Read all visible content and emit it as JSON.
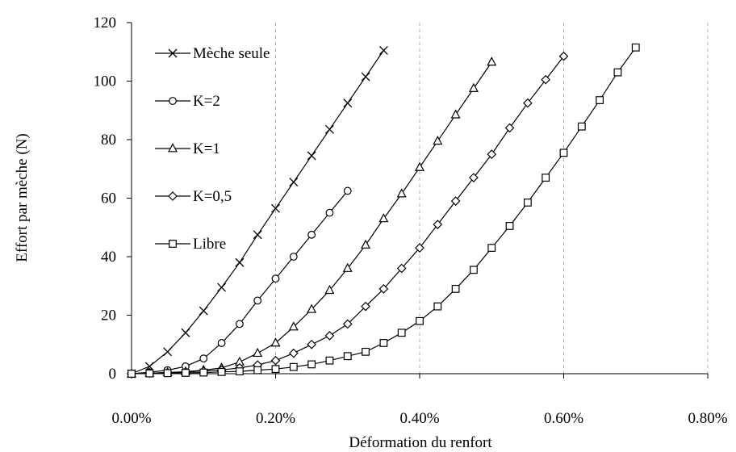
{
  "chart_data": {
    "type": "line",
    "title": "",
    "xlabel": "Déformation du renfort",
    "ylabel": "Effort par mèche (N)",
    "xlim": [
      0,
      0.008
    ],
    "ylim": [
      0,
      120
    ],
    "xticks": [
      0,
      0.002,
      0.004,
      0.006,
      0.008
    ],
    "xtick_labels": [
      "0.00%",
      "0.20%",
      "0.40%",
      "0.60%",
      "0.80%"
    ],
    "yticks": [
      0,
      20,
      40,
      60,
      80,
      100,
      120
    ],
    "ytick_labels": [
      "0",
      "20",
      "40",
      "60",
      "80",
      "100",
      "120"
    ],
    "grid": "vertical dashed",
    "legend_position": "top-left inside",
    "line_color": "#000000",
    "series": [
      {
        "name": "Mèche seule",
        "marker": "x",
        "x": [
          0,
          0.00025,
          0.0005,
          0.00075,
          0.001,
          0.00125,
          0.0015,
          0.00175,
          0.002,
          0.00225,
          0.0025,
          0.00275,
          0.003,
          0.00325,
          0.0035
        ],
        "y": [
          0,
          2.5,
          7.5,
          14,
          21.5,
          29.5,
          38,
          47.5,
          56.5,
          65.5,
          74.5,
          83.5,
          92.5,
          101.5,
          110.5
        ]
      },
      {
        "name": "K=2",
        "marker": "circle",
        "x": [
          0,
          0.00025,
          0.0005,
          0.00075,
          0.001,
          0.00125,
          0.0015,
          0.00175,
          0.002,
          0.00225,
          0.0025,
          0.00275,
          0.003
        ],
        "y": [
          0,
          0.5,
          1.2,
          2.5,
          5.2,
          10.5,
          17,
          25,
          32.5,
          40,
          47.5,
          55,
          62.5
        ]
      },
      {
        "name": "K=1",
        "marker": "triangle",
        "x": [
          0,
          0.00025,
          0.0005,
          0.00075,
          0.001,
          0.00125,
          0.0015,
          0.00175,
          0.002,
          0.00225,
          0.0025,
          0.00275,
          0.003,
          0.00325,
          0.0035,
          0.00375,
          0.004,
          0.00425,
          0.0045,
          0.00475,
          0.005
        ],
        "y": [
          0,
          0.2,
          0.4,
          0.7,
          1.2,
          2,
          4,
          7,
          10.5,
          16,
          22,
          28.5,
          36,
          44,
          53,
          61.5,
          70.5,
          79.5,
          88.5,
          97.5,
          106.5
        ]
      },
      {
        "name": "K=0,5",
        "marker": "diamond",
        "x": [
          0,
          0.00025,
          0.0005,
          0.00075,
          0.001,
          0.00125,
          0.0015,
          0.00175,
          0.002,
          0.00225,
          0.0025,
          0.00275,
          0.003,
          0.00325,
          0.0035,
          0.00375,
          0.004,
          0.00425,
          0.0045,
          0.00475,
          0.005,
          0.00525,
          0.0055,
          0.00575,
          0.006
        ],
        "y": [
          0,
          0.2,
          0.4,
          0.6,
          0.9,
          1.3,
          2,
          3,
          4.5,
          7,
          10,
          13,
          17,
          23,
          29,
          36,
          43,
          51,
          59,
          67,
          75,
          84,
          92.5,
          100.5,
          108.5
        ]
      },
      {
        "name": "Libre",
        "marker": "square",
        "x": [
          0,
          0.00025,
          0.0005,
          0.00075,
          0.001,
          0.00125,
          0.0015,
          0.00175,
          0.002,
          0.00225,
          0.0025,
          0.00275,
          0.003,
          0.00325,
          0.0035,
          0.00375,
          0.004,
          0.00425,
          0.0045,
          0.00475,
          0.005,
          0.00525,
          0.0055,
          0.00575,
          0.006,
          0.00625,
          0.0065,
          0.00675,
          0.007
        ],
        "y": [
          0,
          0.1,
          0.2,
          0.3,
          0.4,
          0.6,
          0.8,
          1.2,
          1.6,
          2.3,
          3.2,
          4.5,
          6,
          7.5,
          10.5,
          14,
          18,
          23,
          29,
          35.5,
          43,
          50.5,
          58.5,
          67,
          75.5,
          84.5,
          93.5,
          103,
          111.5
        ]
      }
    ]
  }
}
